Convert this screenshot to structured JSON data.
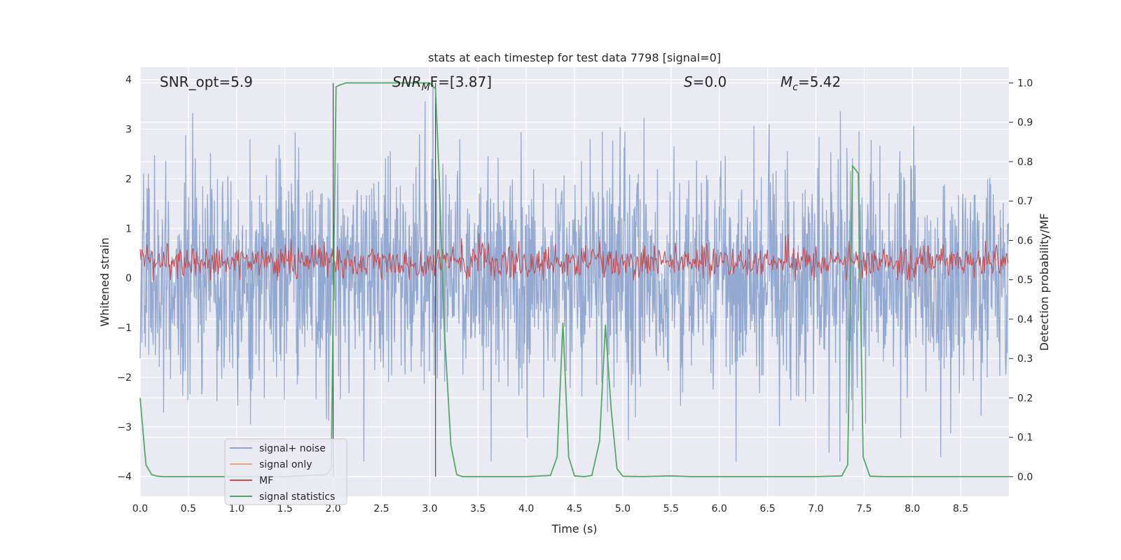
{
  "chart_data": {
    "type": "line",
    "title": "stats at each timestep for test data 7798 [signal=0]",
    "xlabel": "Time (s)",
    "ylabel_left": "Whitened strain",
    "ylabel_right": "Detection probability/MF",
    "xlim": [
      0.0,
      9.0
    ],
    "ylim_left": [
      -4.4,
      4.25
    ],
    "ylim_right": [
      -0.05,
      1.04
    ],
    "xticks": [
      0.0,
      0.5,
      1.0,
      1.5,
      2.0,
      2.5,
      3.0,
      3.5,
      4.0,
      4.5,
      5.0,
      5.5,
      6.0,
      6.5,
      7.0,
      7.5,
      8.0,
      8.5
    ],
    "xtick_labels": [
      "0.0",
      "0.5",
      "1.0",
      "1.5",
      "2.0",
      "2.5",
      "3.0",
      "3.5",
      "4.0",
      "4.5",
      "5.0",
      "5.5",
      "6.0",
      "6.5",
      "7.0",
      "7.5",
      "8.0",
      "8.5"
    ],
    "yticks_left": [
      4,
      3,
      2,
      1,
      0,
      -1,
      -2,
      -3,
      -4
    ],
    "ytick_labels_left": [
      "4",
      "3",
      "2",
      "1",
      "0",
      "−1",
      "−2",
      "−3",
      "−4"
    ],
    "yticks_right": [
      1.0,
      0.9,
      0.8,
      0.7,
      0.6,
      0.5,
      0.4,
      0.3,
      0.2,
      0.1,
      0.0
    ],
    "ytick_labels_right": [
      "1.0",
      "0.9",
      "0.8",
      "0.7",
      "0.6",
      "0.5",
      "0.4",
      "0.3",
      "0.2",
      "0.1",
      "0.0"
    ],
    "annotations": {
      "snr_opt": "SNR_opt=5.9",
      "snr_mf_sym": "SNR",
      "snr_mf_sub": "M",
      "snr_mf_rest": "F=[3.87]",
      "s_sym": "S",
      "s_rest": "=0.0",
      "mc_sym": "M",
      "mc_sub": "c",
      "mc_rest": "=5.42"
    },
    "legend": {
      "position": "lower-left",
      "entries": [
        {
          "label": "signal+ noise",
          "color": "#8fa5cf"
        },
        {
          "label": "signal only",
          "color": "#e8a58b"
        },
        {
          "label": "MF",
          "color": "#c44e52"
        },
        {
          "label": "signal statistics",
          "color": "#55a868"
        }
      ]
    },
    "vertical_lines_x": [
      2.0,
      3.06
    ],
    "series": [
      {
        "name": "signal+ noise",
        "axis": "left",
        "color": "#8fa5cf",
        "envelope": {
          "seed": 7798,
          "sample_dt": 0.0045,
          "scale": 1.15,
          "peak_max": 3.9,
          "trough_min": -3.7
        }
      },
      {
        "name": "signal only",
        "axis": "left",
        "color": "#e8a58b",
        "values": []
      },
      {
        "name": "MF",
        "axis": "left",
        "color": "#c44e52",
        "envelope": {
          "seed": 42,
          "sample_dt": 0.009,
          "center": 0.33,
          "scale": 0.18,
          "peak_max": 0.9,
          "trough_min": -0.05
        }
      },
      {
        "name": "signal statistics",
        "axis": "right",
        "color": "#55a868",
        "x": [
          0.0,
          0.06,
          0.12,
          0.18,
          0.25,
          0.5,
          1.0,
          1.5,
          1.93,
          1.98,
          2.0,
          2.03,
          2.07,
          2.13,
          2.2,
          2.5,
          3.0,
          3.06,
          3.1,
          3.15,
          3.22,
          3.28,
          3.34,
          3.5,
          4.0,
          4.25,
          4.32,
          4.38,
          4.44,
          4.5,
          4.6,
          4.68,
          4.76,
          4.82,
          4.88,
          4.94,
          5.0,
          5.2,
          5.5,
          5.7,
          6.0,
          6.5,
          7.0,
          7.27,
          7.33,
          7.38,
          7.44,
          7.49,
          7.56,
          7.7,
          8.0,
          8.5,
          9.0
        ],
        "values": [
          0.2,
          0.03,
          0.005,
          0.001,
          0.0,
          0.0,
          0.0,
          0.0,
          0.005,
          0.02,
          0.43,
          0.99,
          0.995,
          1.0,
          1.0,
          1.0,
          1.0,
          0.985,
          0.75,
          0.38,
          0.08,
          0.005,
          0.0,
          0.0,
          0.0,
          0.003,
          0.05,
          0.39,
          0.05,
          0.002,
          0.0,
          0.003,
          0.09,
          0.385,
          0.17,
          0.02,
          0.001,
          0.0,
          0.002,
          0.0,
          0.0,
          0.0,
          0.0,
          0.002,
          0.03,
          0.79,
          0.77,
          0.05,
          0.001,
          0.0,
          0.0,
          0.0,
          0.0
        ]
      }
    ]
  }
}
